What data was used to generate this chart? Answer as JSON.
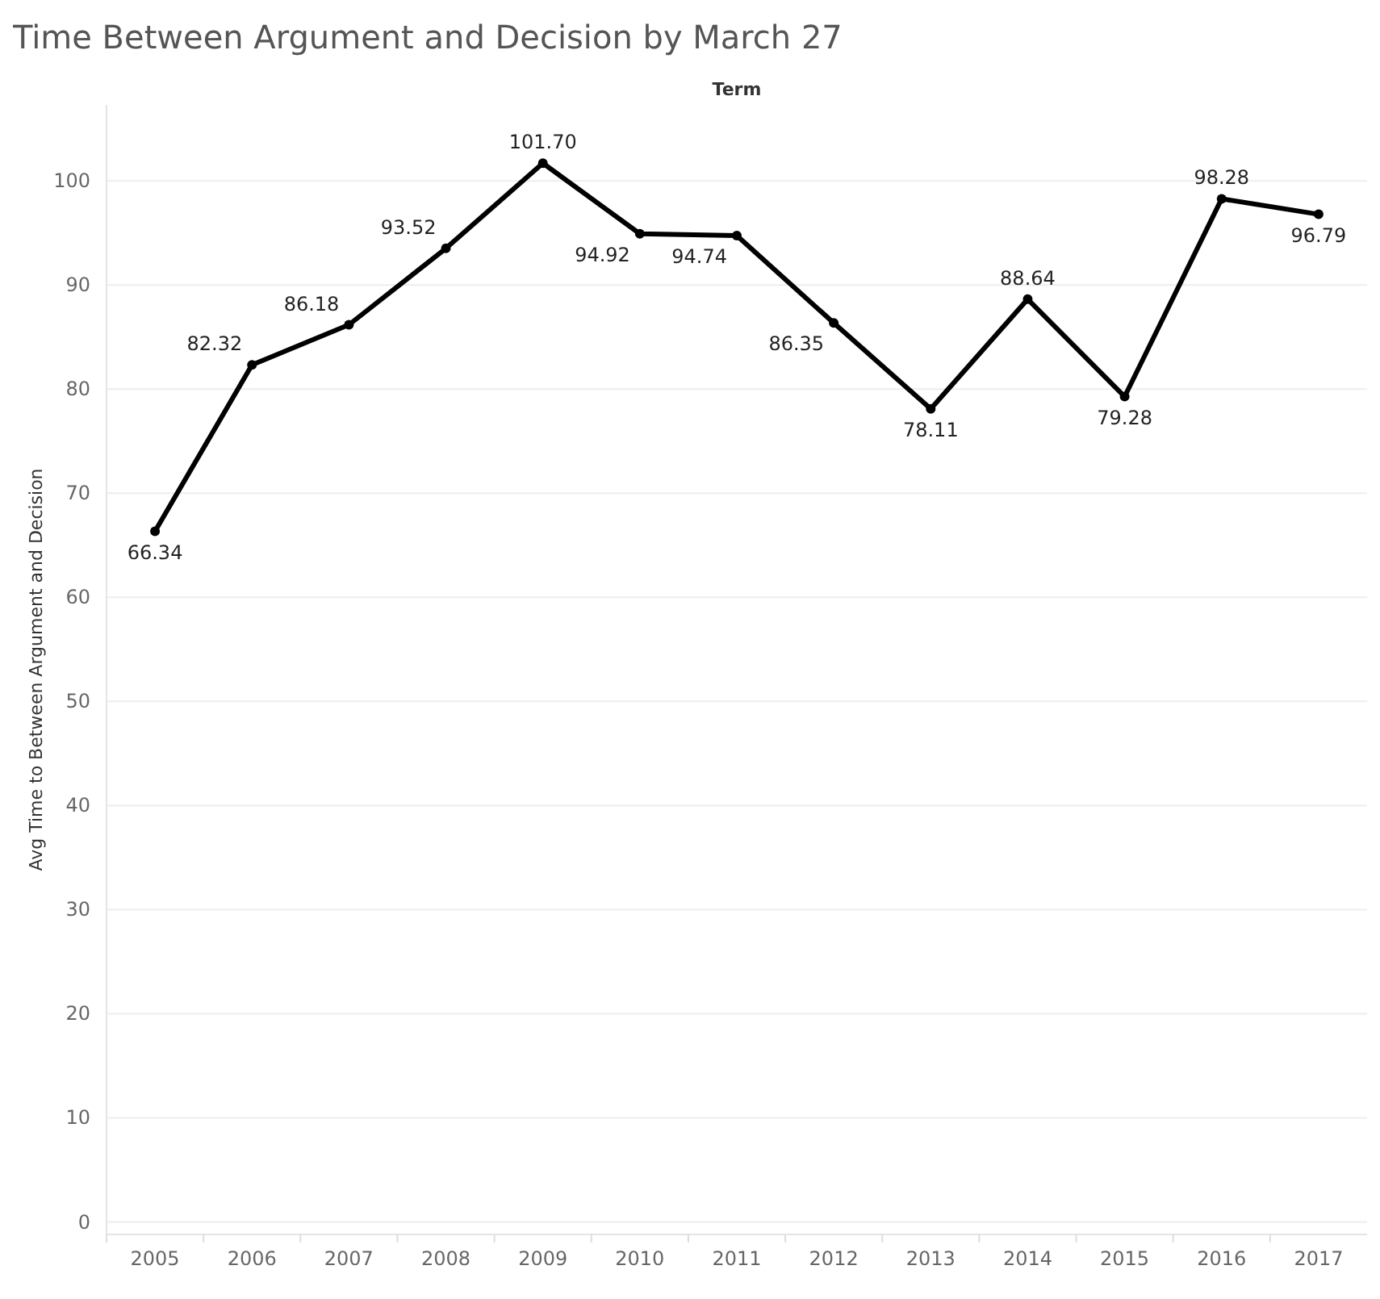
{
  "chart_data": {
    "type": "line",
    "title": "Time Between Argument and Decision by March 27",
    "xlabel": "Term",
    "ylabel": "Avg Time to Between Argument and Decision",
    "categories": [
      "2005",
      "2006",
      "2007",
      "2008",
      "2009",
      "2010",
      "2011",
      "2012",
      "2013",
      "2014",
      "2015",
      "2016",
      "2017"
    ],
    "series": [
      {
        "color": "#000000",
        "values": [
          66.34,
          82.32,
          86.18,
          93.52,
          101.7,
          94.92,
          94.74,
          86.35,
          78.11,
          88.64,
          79.28,
          98.28,
          96.79
        ],
        "value_labels": [
          "66.34",
          "82.32",
          "86.18",
          "93.52",
          "101.70",
          "94.92",
          "94.74",
          "86.35",
          "78.11",
          "88.64",
          "79.28",
          "98.28",
          "96.79"
        ]
      }
    ],
    "ylim": [
      -1.2,
      107.3
    ],
    "yticks": [
      0,
      10,
      20,
      30,
      40,
      50,
      60,
      70,
      80,
      90,
      100
    ],
    "grid": "y",
    "marker": "circle",
    "data_labels": true
  }
}
